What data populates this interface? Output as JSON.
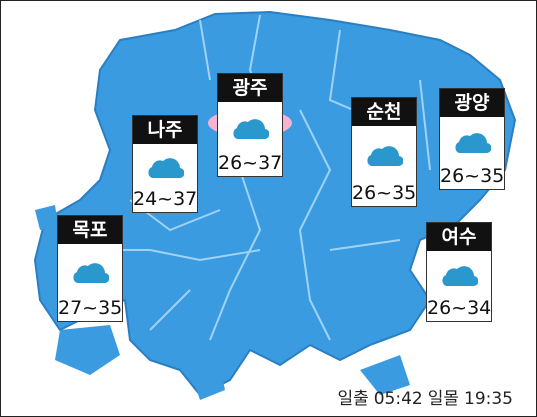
{
  "cities": [
    {
      "name": "광주",
      "temp": "26~37"
    },
    {
      "name": "나주",
      "temp": "24~37"
    },
    {
      "name": "순천",
      "temp": "26~35"
    },
    {
      "name": "광양",
      "temp": "26~35"
    },
    {
      "name": "목포",
      "temp": "27~35"
    },
    {
      "name": "여수",
      "temp": "26~34"
    }
  ],
  "footer": {
    "sunrise_label": "일출",
    "sunrise": "05:42",
    "sunset_label": "일몰",
    "sunset": "19:35"
  }
}
